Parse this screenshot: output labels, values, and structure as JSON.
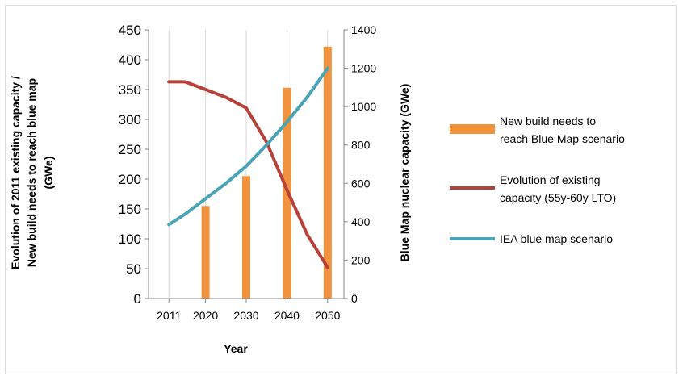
{
  "chart_data": {
    "type": "bar",
    "xlabel": "Year",
    "ylabel_left": [
      "Evolution of 2011 existing capacity /",
      "New build needs to reach blue map",
      "(GWe)"
    ],
    "ylabel_right": "Blue Map nuclear capacity (GWe)",
    "ylim_left": [
      0,
      450
    ],
    "ylim_right": [
      0,
      1400
    ],
    "yticks_left": [
      0,
      50,
      100,
      150,
      200,
      250,
      300,
      350,
      400,
      450
    ],
    "yticks_right": [
      0,
      200,
      400,
      600,
      800,
      1000,
      1200,
      1400
    ],
    "xtick_labels": [
      "2011",
      "2020",
      "2030",
      "2040",
      "2050"
    ],
    "xlim": [
      2006,
      2054
    ],
    "grid": "vertical",
    "legend_position": "right",
    "series": [
      {
        "name": "New build needs to reach Blue Map scenario",
        "legend_lines": [
          "New build needs to",
          "reach Blue Map scenario"
        ],
        "kind": "bar",
        "axis": "left",
        "color": "#F0923E",
        "x": [
          2020,
          2030,
          2040,
          2050
        ],
        "values": [
          155,
          205,
          353,
          422
        ]
      },
      {
        "name": "Evolution of existing capacity (55y-60y LTO)",
        "legend_lines": [
          "Evolution of existing",
          "capacity (55y-60y LTO)"
        ],
        "kind": "line",
        "axis": "left",
        "color": "#B8413A",
        "x": [
          2011,
          2015,
          2020,
          2025,
          2030,
          2035,
          2040,
          2045,
          2050
        ],
        "values": [
          363,
          363,
          350,
          337,
          319,
          262,
          182,
          107,
          52
        ]
      },
      {
        "name": "IEA blue map scenario",
        "legend_lines": [
          "IEA blue map scenario"
        ],
        "kind": "line",
        "axis": "right",
        "color": "#4BA3B6",
        "x": [
          2011,
          2015,
          2020,
          2025,
          2030,
          2035,
          2040,
          2045,
          2050
        ],
        "values": [
          385,
          440,
          520,
          600,
          690,
          800,
          920,
          1050,
          1200
        ]
      }
    ]
  }
}
